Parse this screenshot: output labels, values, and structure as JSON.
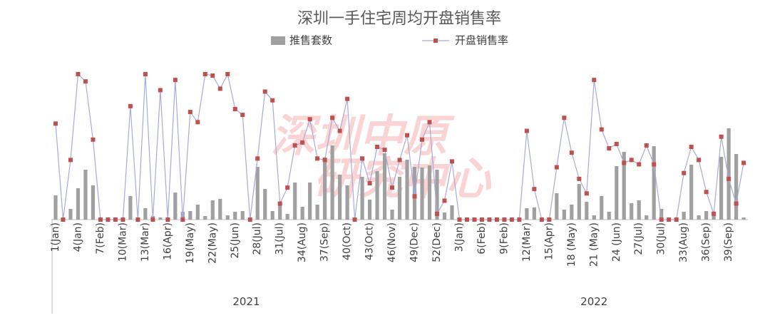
{
  "chart_data": {
    "type": "combo",
    "title": "深圳一手住宅周均开盘销售率",
    "watermark": [
      "深圳中原",
      "研究中心"
    ],
    "categories": [
      "1(Jan)",
      null,
      null,
      "4(Jan)",
      null,
      null,
      "7(Feb)",
      null,
      null,
      "10(Mar)",
      null,
      null,
      "13(Mar)",
      null,
      null,
      "16(Apr)",
      null,
      null,
      "19(May)",
      null,
      null,
      "22(May)",
      null,
      null,
      "25(Jun)",
      null,
      null,
      "28(Jul)",
      null,
      null,
      "31(Jul)",
      null,
      null,
      "34(Aug)",
      null,
      null,
      "37(Sep)",
      null,
      null,
      "40(Oct)",
      null,
      null,
      "43(Oct)",
      null,
      null,
      "46(Nov)",
      null,
      null,
      "49(Dec)",
      null,
      null,
      "52(Dec)",
      null,
      null,
      "3(Jan)",
      null,
      null,
      "6(Feb)",
      null,
      null,
      "9(Feb)",
      null,
      null,
      "12(Mar)",
      null,
      null,
      "15(Apr)",
      null,
      null,
      "18 (May)",
      null,
      null,
      "21 (May)",
      null,
      null,
      "24 (Jun)",
      null,
      null,
      "27(Jul)",
      null,
      null,
      "30(Jul)",
      null,
      null,
      "33(Aug)",
      null,
      null,
      "36(Sep)",
      null,
      null,
      "39(Sep)",
      null,
      null
    ],
    "groups": [
      "2021",
      "2022"
    ],
    "ylim": [
      0,
      2040
    ],
    "y2lim": [
      0,
      100
    ],
    "series": [
      {
        "name": "推售套数",
        "type": "bar",
        "color": "#a0a0a0",
        "values": [
          340,
          30,
          150,
          440,
          700,
          480,
          0,
          0,
          0,
          0,
          330,
          10,
          160,
          50,
          30,
          30,
          380,
          110,
          120,
          210,
          50,
          270,
          290,
          60,
          110,
          120,
          10,
          740,
          430,
          120,
          250,
          80,
          520,
          180,
          520,
          210,
          870,
          1040,
          630,
          480,
          20,
          600,
          280,
          680,
          930,
          140,
          600,
          840,
          740,
          730,
          760,
          700,
          100,
          200,
          0,
          0,
          0,
          0,
          0,
          0,
          0,
          0,
          0,
          160,
          170,
          20,
          20,
          370,
          140,
          210,
          500,
          250,
          60,
          330,
          110,
          750,
          950,
          230,
          270,
          60,
          1030,
          150,
          20,
          20,
          110,
          770,
          60,
          120,
          100,
          880,
          1280,
          920,
          30
        ]
      },
      {
        "name": "开盘销售率",
        "type": "line",
        "axis": "y2",
        "color": "#a8aad8",
        "marker_color": "#c0504d",
        "values": [
          66,
          0,
          41,
          100,
          95,
          55,
          0,
          0,
          0,
          0,
          78,
          0,
          100,
          0,
          89,
          0,
          96,
          0,
          74,
          67,
          100,
          99,
          90,
          100,
          76,
          72,
          0,
          42,
          88,
          82,
          11,
          22,
          51,
          53,
          69,
          42,
          41,
          70,
          61,
          83,
          0,
          42,
          25,
          50,
          48,
          22,
          41,
          58,
          16,
          55,
          67,
          4,
          13,
          40,
          0,
          0,
          0,
          0,
          0,
          0,
          0,
          0,
          0,
          61,
          21,
          0,
          0,
          36,
          70,
          46,
          28,
          18,
          96,
          62,
          49,
          52,
          39,
          41,
          38,
          51,
          38,
          0,
          0,
          0,
          32,
          50,
          41,
          19,
          4,
          57,
          28,
          11,
          39
        ]
      }
    ]
  }
}
